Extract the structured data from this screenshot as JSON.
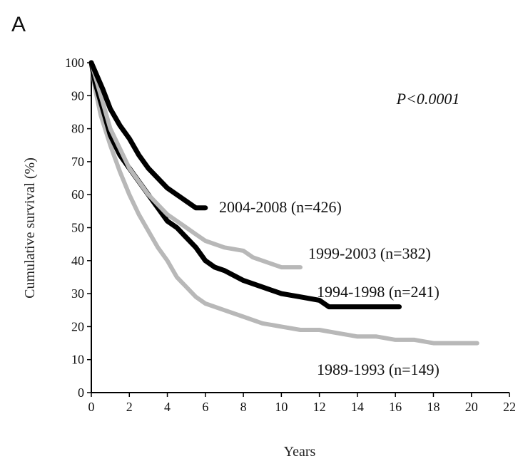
{
  "panel_label": "A",
  "chart_data": {
    "type": "line",
    "title": "",
    "xlabel": "Years",
    "ylabel": "Cumulative survival (%)",
    "xlim": [
      0,
      22
    ],
    "ylim": [
      0,
      100
    ],
    "x_ticks": [
      0,
      2,
      4,
      6,
      8,
      10,
      12,
      14,
      16,
      18,
      20,
      22
    ],
    "y_ticks": [
      0,
      10,
      20,
      30,
      40,
      50,
      60,
      70,
      80,
      90,
      100
    ],
    "grid": false,
    "annotation": "P<0.0001",
    "series": [
      {
        "name": "1989-1993 (n=149)",
        "color": "#b8b8b8",
        "x": [
          0,
          0.2,
          0.5,
          1,
          1.5,
          2,
          2.5,
          3,
          3.5,
          4,
          4.5,
          5,
          5.5,
          6,
          7,
          8,
          9,
          10,
          11,
          12,
          13,
          14,
          15,
          16,
          17,
          18,
          19,
          20.3
        ],
        "y": [
          100,
          92,
          84,
          75,
          67,
          60,
          54,
          49,
          44,
          40,
          35,
          32,
          29,
          27,
          25,
          23,
          21,
          20,
          19,
          19,
          18,
          17,
          17,
          16,
          16,
          15,
          15,
          15
        ]
      },
      {
        "name": "1994-1998 (n=241)",
        "color": "#000000",
        "x": [
          0,
          0.2,
          0.5,
          1,
          1.5,
          2,
          2.5,
          3,
          3.5,
          4,
          4.5,
          5,
          5.5,
          6,
          6.5,
          7,
          8,
          9,
          10,
          11,
          12,
          12.5,
          13,
          14,
          15,
          16.2
        ],
        "y": [
          100,
          94,
          88,
          78,
          72,
          68,
          64,
          60,
          56,
          52,
          50,
          47,
          44,
          40,
          38,
          37,
          34,
          32,
          30,
          29,
          28,
          26,
          26,
          26,
          26,
          26
        ]
      },
      {
        "name": "1999-2003 (n=382)",
        "color": "#b8b8b8",
        "x": [
          0,
          0.3,
          0.6,
          1,
          1.5,
          2,
          2.5,
          3,
          3.5,
          4,
          4.5,
          5,
          5.5,
          6,
          7,
          8,
          8.5,
          9,
          9.5,
          10,
          11
        ],
        "y": [
          100,
          94,
          88,
          80,
          74,
          68,
          64,
          60,
          57,
          54,
          52,
          50,
          48,
          46,
          44,
          43,
          41,
          40,
          39,
          38,
          38
        ]
      },
      {
        "name": "2004-2008 (n=426)",
        "color": "#000000",
        "x": [
          0,
          0.3,
          0.6,
          1,
          1.5,
          2,
          2.5,
          3,
          3.5,
          4,
          4.5,
          5,
          5.5,
          6
        ],
        "y": [
          100,
          96,
          92,
          86,
          81,
          77,
          72,
          68,
          65,
          62,
          60,
          58,
          56,
          56
        ]
      }
    ],
    "labels": [
      {
        "series": "2004-2008 (n=426)",
        "text": "2004-2008 (n=426)"
      },
      {
        "series": "1999-2003 (n=382)",
        "text": "1999-2003 (n=382)"
      },
      {
        "series": "1994-1998 (n=241)",
        "text": "1994-1998 (n=241)"
      },
      {
        "series": "1989-1993 (n=149)",
        "text": "1989-1993 (n=149)"
      }
    ]
  }
}
